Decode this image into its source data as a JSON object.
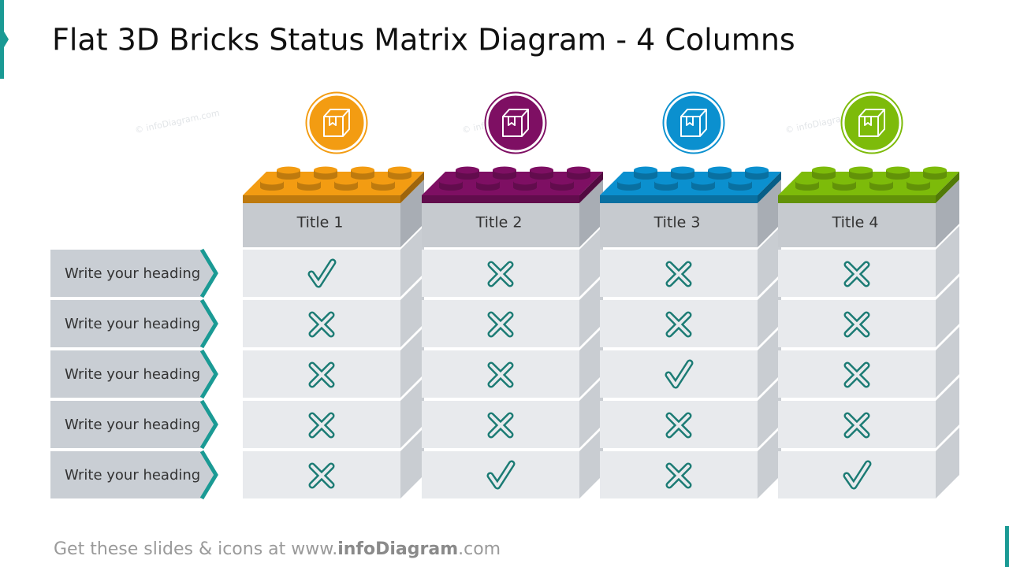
{
  "header": {
    "title": "Flat 3D Bricks Status Matrix Diagram - 4 Columns"
  },
  "columns": [
    {
      "title": "Title 1",
      "color": "#f39c12"
    },
    {
      "title": "Title 2",
      "color": "#7e0f63"
    },
    {
      "title": "Title 3",
      "color": "#0b90cf"
    },
    {
      "title": "Title 4",
      "color": "#7dbb0a"
    }
  ],
  "rows": [
    {
      "heading": "Write your heading",
      "status": [
        "check",
        "cross",
        "cross",
        "cross"
      ]
    },
    {
      "heading": "Write your heading",
      "status": [
        "cross",
        "cross",
        "cross",
        "cross"
      ]
    },
    {
      "heading": "Write your heading",
      "status": [
        "cross",
        "cross",
        "check",
        "cross"
      ]
    },
    {
      "heading": "Write your heading",
      "status": [
        "cross",
        "cross",
        "cross",
        "cross"
      ]
    },
    {
      "heading": "Write your heading",
      "status": [
        "cross",
        "check",
        "cross",
        "check"
      ]
    }
  ],
  "footer": {
    "prefix": "Get these slides & icons at www.",
    "brand": "infoDiagram",
    "suffix": ".com"
  },
  "watermark": "© infoDiagram.com"
}
